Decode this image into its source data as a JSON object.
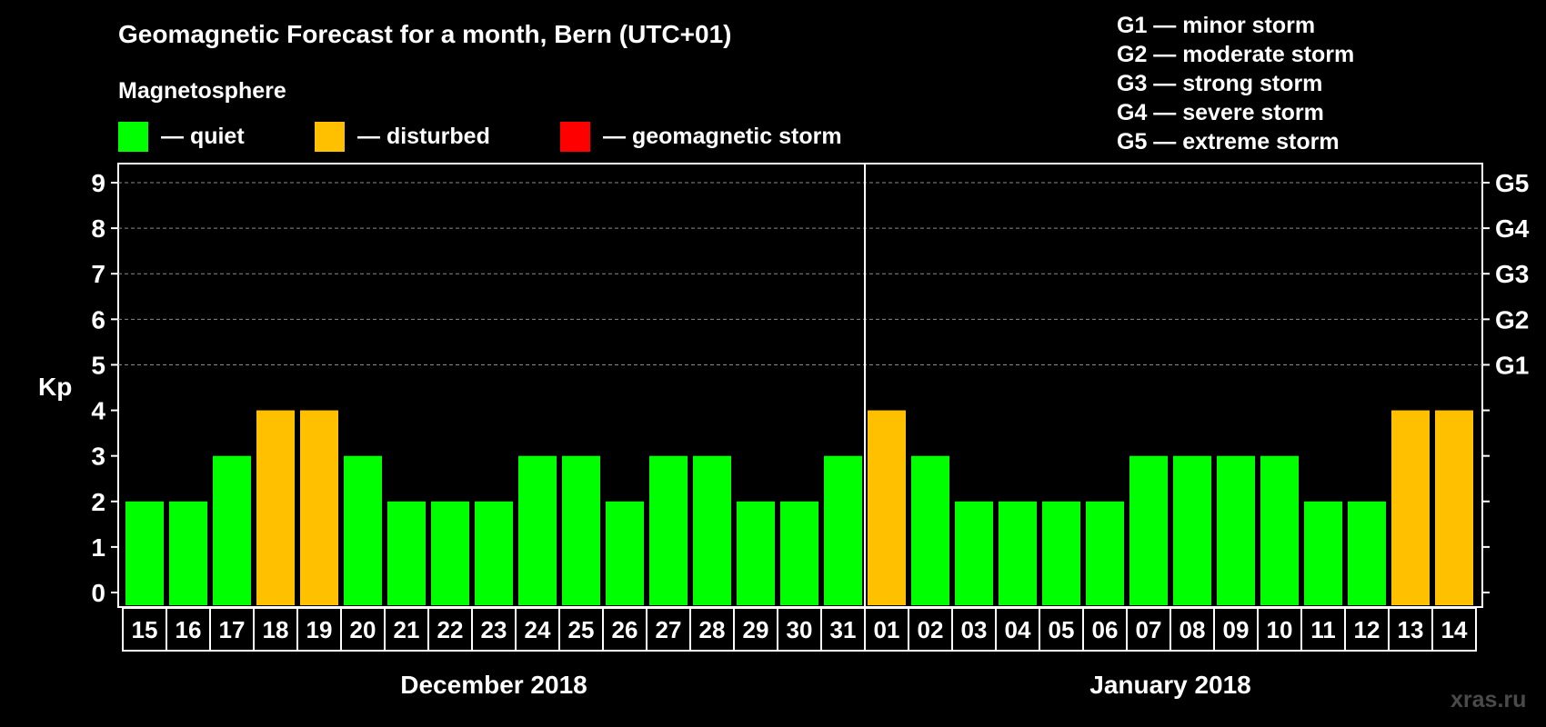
{
  "chart_data": {
    "type": "bar",
    "title": "Geomagnetic Forecast for a month, Bern (UTC+01)",
    "ylabel": "Kp",
    "ylim": [
      0,
      9
    ],
    "yticks": [
      "0",
      "1",
      "2",
      "3",
      "4",
      "5",
      "6",
      "7",
      "8",
      "9"
    ],
    "grid": true,
    "categories": [
      "15",
      "16",
      "17",
      "18",
      "19",
      "20",
      "21",
      "22",
      "23",
      "24",
      "25",
      "26",
      "27",
      "28",
      "29",
      "30",
      "31",
      "01",
      "02",
      "03",
      "04",
      "05",
      "06",
      "07",
      "08",
      "09",
      "10",
      "11",
      "12",
      "13",
      "14"
    ],
    "values": [
      2,
      2,
      3,
      4,
      4,
      3,
      2,
      2,
      2,
      3,
      3,
      2,
      3,
      3,
      2,
      2,
      3,
      4,
      3,
      2,
      2,
      2,
      2,
      3,
      3,
      3,
      3,
      2,
      2,
      4,
      4
    ],
    "status": [
      "quiet",
      "quiet",
      "quiet",
      "disturbed",
      "disturbed",
      "quiet",
      "quiet",
      "quiet",
      "quiet",
      "quiet",
      "quiet",
      "quiet",
      "quiet",
      "quiet",
      "quiet",
      "quiet",
      "quiet",
      "disturbed",
      "quiet",
      "quiet",
      "quiet",
      "quiet",
      "quiet",
      "quiet",
      "quiet",
      "quiet",
      "quiet",
      "quiet",
      "quiet",
      "disturbed",
      "disturbed"
    ],
    "month_groups": [
      {
        "label": "December 2018",
        "count": 17
      },
      {
        "label": "January 2018",
        "count": 14
      }
    ],
    "storm_axis": [
      {
        "kp": 5,
        "label": "G1"
      },
      {
        "kp": 6,
        "label": "G2"
      },
      {
        "kp": 7,
        "label": "G3"
      },
      {
        "kp": 8,
        "label": "G4"
      },
      {
        "kp": 9,
        "label": "G5"
      }
    ],
    "legend_title": "Magnetosphere",
    "legend": [
      {
        "key": "quiet",
        "label": "— quiet",
        "color": "#00ff00"
      },
      {
        "key": "disturbed",
        "label": "— disturbed",
        "color": "#ffc000"
      },
      {
        "key": "storm",
        "label": "— geomagnetic storm",
        "color": "#ff0000"
      }
    ],
    "storm_scale": [
      "G1 — minor storm",
      "G2 — moderate storm",
      "G3 — strong storm",
      "G4 — severe storm",
      "G5 — extreme storm"
    ]
  },
  "watermark": "xras.ru"
}
